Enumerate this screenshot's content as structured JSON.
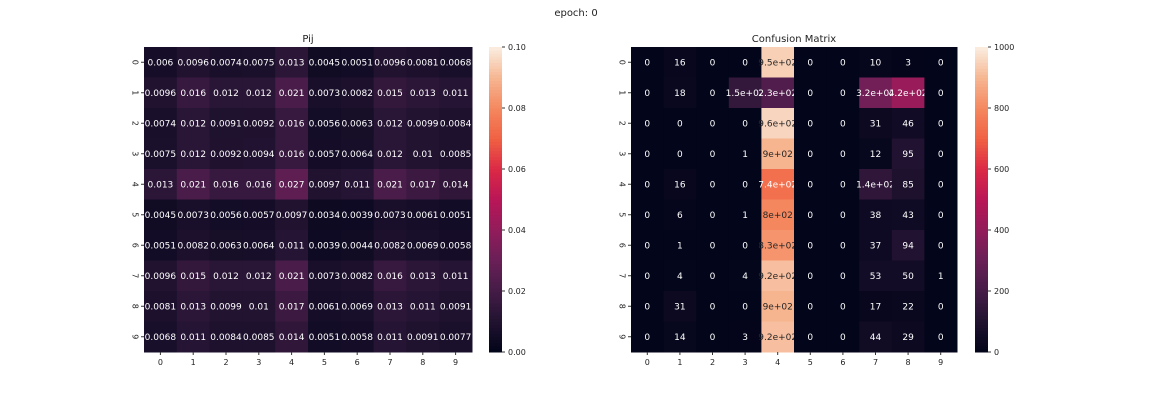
{
  "suptitle": "epoch: 0",
  "chart_data": [
    {
      "type": "heatmap",
      "title": "Pij",
      "x_ticks": [
        "0",
        "1",
        "2",
        "3",
        "4",
        "5",
        "6",
        "7",
        "8",
        "9"
      ],
      "y_ticks": [
        "0",
        "1",
        "2",
        "3",
        "4",
        "5",
        "6",
        "7",
        "8",
        "9"
      ],
      "vmin": 0,
      "vmax": 0.1,
      "colorbar_ticks": [
        "0.00",
        "0.02",
        "0.04",
        "0.06",
        "0.08",
        "0.10"
      ],
      "colormap": "rocket",
      "values": [
        [
          0.006,
          0.0096,
          0.0074,
          0.0075,
          0.013,
          0.0045,
          0.0051,
          0.0096,
          0.0081,
          0.0068
        ],
        [
          0.0096,
          0.016,
          0.012,
          0.012,
          0.021,
          0.0073,
          0.0082,
          0.015,
          0.013,
          0.011
        ],
        [
          0.0074,
          0.012,
          0.0091,
          0.0092,
          0.016,
          0.0056,
          0.0063,
          0.012,
          0.0099,
          0.0084
        ],
        [
          0.0075,
          0.012,
          0.0092,
          0.0094,
          0.016,
          0.0057,
          0.0064,
          0.012,
          0.01,
          0.0085
        ],
        [
          0.013,
          0.021,
          0.016,
          0.016,
          0.027,
          0.0097,
          0.011,
          0.021,
          0.017,
          0.014
        ],
        [
          0.0045,
          0.0073,
          0.0056,
          0.0057,
          0.0097,
          0.0034,
          0.0039,
          0.0073,
          0.0061,
          0.0051
        ],
        [
          0.0051,
          0.0082,
          0.0063,
          0.0064,
          0.011,
          0.0039,
          0.0044,
          0.0082,
          0.0069,
          0.0058
        ],
        [
          0.0096,
          0.015,
          0.012,
          0.012,
          0.021,
          0.0073,
          0.0082,
          0.016,
          0.013,
          0.011
        ],
        [
          0.0081,
          0.013,
          0.0099,
          0.01,
          0.017,
          0.0061,
          0.0069,
          0.013,
          0.011,
          0.0091
        ],
        [
          0.0068,
          0.011,
          0.0084,
          0.0085,
          0.014,
          0.0051,
          0.0058,
          0.011,
          0.0091,
          0.0077
        ]
      ],
      "labels": [
        [
          "0.006",
          "0.0096",
          "0.0074",
          "0.0075",
          "0.013",
          "0.0045",
          "0.0051",
          "0.0096",
          "0.0081",
          "0.0068"
        ],
        [
          "0.0096",
          "0.016",
          "0.012",
          "0.012",
          "0.021",
          "0.0073",
          "0.0082",
          "0.015",
          "0.013",
          "0.011"
        ],
        [
          "0.0074",
          "0.012",
          "0.0091",
          "0.0092",
          "0.016",
          "0.0056",
          "0.0063",
          "0.012",
          "0.0099",
          "0.0084"
        ],
        [
          "0.0075",
          "0.012",
          "0.0092",
          "0.0094",
          "0.016",
          "0.0057",
          "0.0064",
          "0.012",
          "0.01",
          "0.0085"
        ],
        [
          "0.013",
          "0.021",
          "0.016",
          "0.016",
          "0.027",
          "0.0097",
          "0.011",
          "0.021",
          "0.017",
          "0.014"
        ],
        [
          "0.0045",
          "0.0073",
          "0.0056",
          "0.0057",
          "0.0097",
          "0.0034",
          "0.0039",
          "0.0073",
          "0.0061",
          "0.0051"
        ],
        [
          "0.0051",
          "0.0082",
          "0.0063",
          "0.0064",
          "0.011",
          "0.0039",
          "0.0044",
          "0.0082",
          "0.0069",
          "0.0058"
        ],
        [
          "0.0096",
          "0.015",
          "0.012",
          "0.012",
          "0.021",
          "0.0073",
          "0.0082",
          "0.016",
          "0.013",
          "0.011"
        ],
        [
          "0.0081",
          "0.013",
          "0.0099",
          "0.01",
          "0.017",
          "0.0061",
          "0.0069",
          "0.013",
          "0.011",
          "0.0091"
        ],
        [
          "0.0068",
          "0.011",
          "0.0084",
          "0.0085",
          "0.014",
          "0.0051",
          "0.0058",
          "0.011",
          "0.0091",
          "0.0077"
        ]
      ]
    },
    {
      "type": "heatmap",
      "title": "Confusion Matrix",
      "x_ticks": [
        "0",
        "1",
        "2",
        "3",
        "4",
        "5",
        "6",
        "7",
        "8",
        "9"
      ],
      "y_ticks": [
        "0",
        "1",
        "2",
        "3",
        "4",
        "5",
        "6",
        "7",
        "8",
        "9"
      ],
      "vmin": 0,
      "vmax": 1000,
      "colorbar_ticks": [
        "0",
        "200",
        "400",
        "600",
        "800",
        "1000"
      ],
      "colormap": "rocket",
      "values": [
        [
          0,
          16,
          0,
          0,
          950,
          0,
          0,
          10,
          3,
          0
        ],
        [
          0,
          18,
          0,
          150,
          230,
          0,
          0,
          320,
          420,
          0
        ],
        [
          0,
          0,
          0,
          0,
          960,
          0,
          0,
          31,
          46,
          0
        ],
        [
          0,
          0,
          0,
          1,
          900,
          0,
          0,
          12,
          95,
          0
        ],
        [
          0,
          16,
          0,
          0,
          740,
          0,
          0,
          140,
          85,
          0
        ],
        [
          0,
          6,
          0,
          1,
          800,
          0,
          0,
          38,
          43,
          0
        ],
        [
          0,
          1,
          0,
          0,
          830,
          0,
          0,
          37,
          94,
          0
        ],
        [
          0,
          4,
          0,
          4,
          920,
          0,
          0,
          53,
          50,
          1
        ],
        [
          0,
          31,
          0,
          0,
          900,
          0,
          0,
          17,
          22,
          0
        ],
        [
          0,
          14,
          0,
          3,
          920,
          0,
          0,
          44,
          29,
          0
        ]
      ],
      "labels": [
        [
          "0",
          "16",
          "0",
          "0",
          "9.5e+02",
          "0",
          "0",
          "10",
          "3",
          "0"
        ],
        [
          "0",
          "18",
          "0",
          "1.5e+02",
          "2.3e+02",
          "0",
          "0",
          "3.2e+02",
          "4.2e+02",
          "0"
        ],
        [
          "0",
          "0",
          "0",
          "0",
          "9.6e+02",
          "0",
          "0",
          "31",
          "46",
          "0"
        ],
        [
          "0",
          "0",
          "0",
          "1",
          "9e+02",
          "0",
          "0",
          "12",
          "95",
          "0"
        ],
        [
          "0",
          "16",
          "0",
          "0",
          "7.4e+02",
          "0",
          "0",
          "1.4e+02",
          "85",
          "0"
        ],
        [
          "0",
          "6",
          "0",
          "1",
          "8e+02",
          "0",
          "0",
          "38",
          "43",
          "0"
        ],
        [
          "0",
          "1",
          "0",
          "0",
          "8.3e+02",
          "0",
          "0",
          "37",
          "94",
          "0"
        ],
        [
          "0",
          "4",
          "0",
          "4",
          "9.2e+02",
          "0",
          "0",
          "53",
          "50",
          "1"
        ],
        [
          "0",
          "31",
          "0",
          "0",
          "9e+02",
          "0",
          "0",
          "17",
          "22",
          "0"
        ],
        [
          "0",
          "14",
          "0",
          "3",
          "9.2e+02",
          "0",
          "0",
          "44",
          "29",
          "0"
        ]
      ]
    }
  ]
}
